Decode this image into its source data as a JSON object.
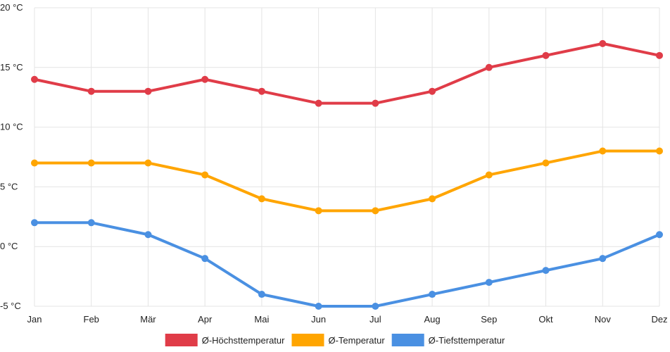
{
  "chart_data": {
    "type": "line",
    "categories": [
      "Jan",
      "Feb",
      "Mär",
      "Apr",
      "Mai",
      "Jun",
      "Jul",
      "Aug",
      "Sep",
      "Okt",
      "Nov",
      "Dez"
    ],
    "ylim": [
      -5,
      20
    ],
    "yticks": [
      -5,
      0,
      5,
      10,
      15,
      20
    ],
    "y_unit": "°C",
    "grid": true,
    "legend_position": "bottom",
    "series": [
      {
        "name": "Ø-Höchsttemperatur",
        "color": "#e03c48",
        "values": [
          14,
          13,
          13,
          14,
          13,
          12,
          12,
          13,
          15,
          16,
          17,
          16
        ]
      },
      {
        "name": "Ø-Temperatur",
        "color": "#ffa500",
        "values": [
          7,
          7,
          7,
          6,
          4,
          3,
          3,
          4,
          6,
          7,
          8,
          8
        ]
      },
      {
        "name": "Ø-Tiefsttemperatur",
        "color": "#4a90e2",
        "values": [
          2,
          2,
          1,
          -1,
          -4,
          -5,
          -5,
          -4,
          -3,
          -2,
          -1,
          1
        ]
      }
    ]
  }
}
